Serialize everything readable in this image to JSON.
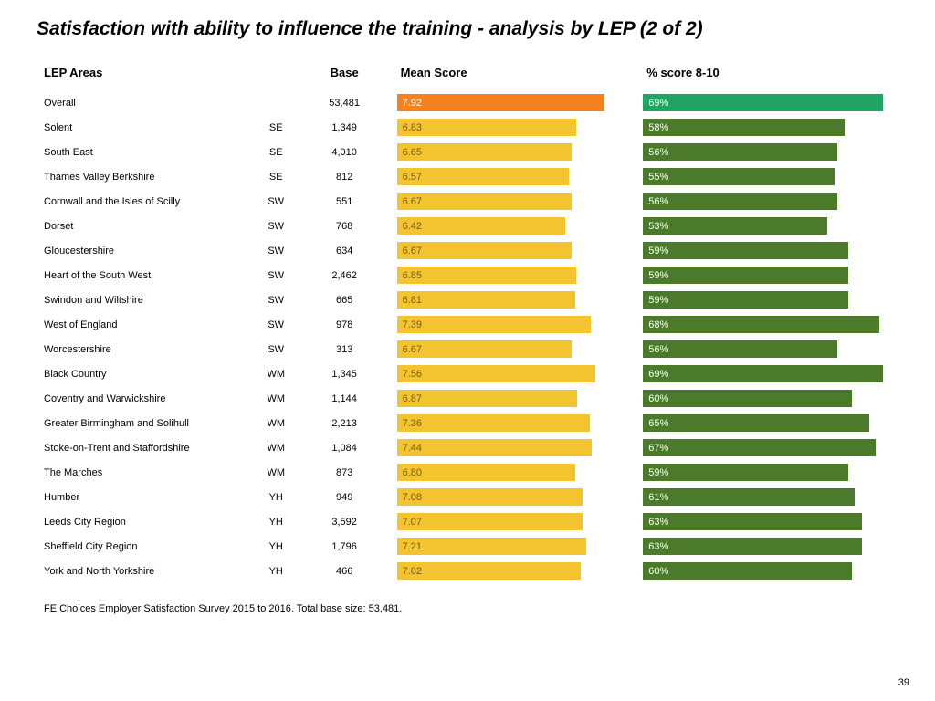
{
  "title": "Satisfaction with ability to influence the training - analysis by LEP (2 of 2)",
  "headers": {
    "lep": "LEP Areas",
    "base": "Base",
    "mean": "Mean Score",
    "pct": "% score 8-10"
  },
  "mean_max": 10,
  "pct_max": 100,
  "bar_mean_scale": 1.15,
  "bar_pct_scale": 1.36,
  "colors": {
    "mean_bar": "#f4c430",
    "mean_bar_overall": "#f58220",
    "pct_bar": "#4a7a2a",
    "pct_bar_overall": "#1fa463",
    "mean_text": "#7a5c00",
    "pct_text": "#ffffff"
  },
  "rows": [
    {
      "lep": "Overall",
      "region": "",
      "base": "53,481",
      "mean": "7.92",
      "mean_val": 7.92,
      "pct": "69%",
      "pct_val": 69,
      "overall": true
    },
    {
      "lep": "Solent",
      "region": "SE",
      "base": "1,349",
      "mean": "6.83",
      "mean_val": 6.83,
      "pct": "58%",
      "pct_val": 58
    },
    {
      "lep": "South East",
      "region": "SE",
      "base": "4,010",
      "mean": "6.65",
      "mean_val": 6.65,
      "pct": "56%",
      "pct_val": 56
    },
    {
      "lep": "Thames Valley Berkshire",
      "region": "SE",
      "base": "812",
      "mean": "6.57",
      "mean_val": 6.57,
      "pct": "55%",
      "pct_val": 55
    },
    {
      "lep": "Cornwall and the Isles of Scilly",
      "region": "SW",
      "base": "551",
      "mean": "6.67",
      "mean_val": 6.67,
      "pct": "56%",
      "pct_val": 56
    },
    {
      "lep": "Dorset",
      "region": "SW",
      "base": "768",
      "mean": "6.42",
      "mean_val": 6.42,
      "pct": "53%",
      "pct_val": 53
    },
    {
      "lep": "Gloucestershire",
      "region": "SW",
      "base": "634",
      "mean": "6.67",
      "mean_val": 6.67,
      "pct": "59%",
      "pct_val": 59
    },
    {
      "lep": "Heart of the South West",
      "region": "SW",
      "base": "2,462",
      "mean": "6.85",
      "mean_val": 6.85,
      "pct": "59%",
      "pct_val": 59
    },
    {
      "lep": "Swindon and Wiltshire",
      "region": "SW",
      "base": "665",
      "mean": "6.81",
      "mean_val": 6.81,
      "pct": "59%",
      "pct_val": 59
    },
    {
      "lep": "West of England",
      "region": "SW",
      "base": "978",
      "mean": "7.39",
      "mean_val": 7.39,
      "pct": "68%",
      "pct_val": 68
    },
    {
      "lep": "Worcestershire",
      "region": "SW",
      "base": "313",
      "mean": "6.67",
      "mean_val": 6.67,
      "pct": "56%",
      "pct_val": 56
    },
    {
      "lep": "Black Country",
      "region": "WM",
      "base": "1,345",
      "mean": "7.56",
      "mean_val": 7.56,
      "pct": "69%",
      "pct_val": 69
    },
    {
      "lep": "Coventry and Warwickshire",
      "region": "WM",
      "base": "1,144",
      "mean": "6.87",
      "mean_val": 6.87,
      "pct": "60%",
      "pct_val": 60
    },
    {
      "lep": "Greater Birmingham and Solihull",
      "region": "WM",
      "base": "2,213",
      "mean": "7.36",
      "mean_val": 7.36,
      "pct": "65%",
      "pct_val": 65
    },
    {
      "lep": "Stoke-on-Trent and Staffordshire",
      "region": "WM",
      "base": "1,084",
      "mean": "7.44",
      "mean_val": 7.44,
      "pct": "67%",
      "pct_val": 67
    },
    {
      "lep": "The Marches",
      "region": "WM",
      "base": "873",
      "mean": "6.80",
      "mean_val": 6.8,
      "pct": "59%",
      "pct_val": 59
    },
    {
      "lep": "Humber",
      "region": "YH",
      "base": "949",
      "mean": "7.08",
      "mean_val": 7.08,
      "pct": "61%",
      "pct_val": 61
    },
    {
      "lep": "Leeds City Region",
      "region": "YH",
      "base": "3,592",
      "mean": "7.07",
      "mean_val": 7.07,
      "pct": "63%",
      "pct_val": 63
    },
    {
      "lep": "Sheffield City Region",
      "region": "YH",
      "base": "1,796",
      "mean": "7.21",
      "mean_val": 7.21,
      "pct": "63%",
      "pct_val": 63
    },
    {
      "lep": "York and North Yorkshire",
      "region": "YH",
      "base": "466",
      "mean": "7.02",
      "mean_val": 7.02,
      "pct": "60%",
      "pct_val": 60
    }
  ],
  "footnote": "FE Choices Employer Satisfaction Survey 2015 to 2016.  Total base size: 53,481.",
  "page_num": "39"
}
